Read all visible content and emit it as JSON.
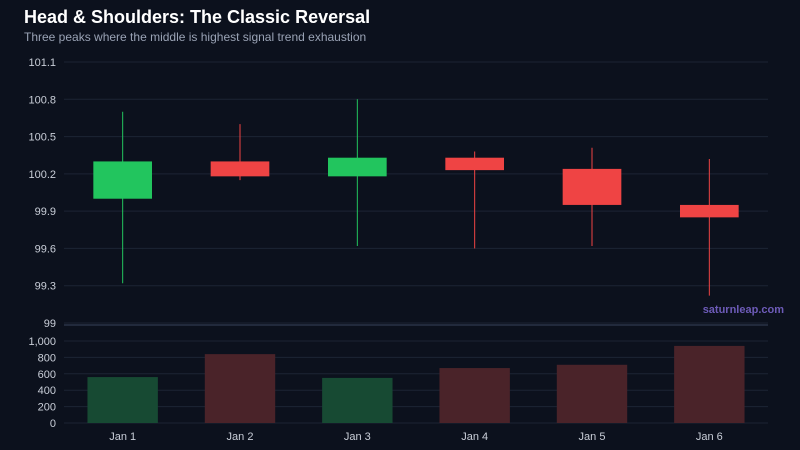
{
  "chart_data": {
    "type": "candlestick",
    "title": "Head & Shoulders: The Classic Reversal",
    "subtitle": "Three peaks where the middle is highest signal trend exhaustion",
    "watermark": "saturnleap.com",
    "categories": [
      "Jan 1",
      "Jan 2",
      "Jan 3",
      "Jan 4",
      "Jan 5",
      "Jan 6"
    ],
    "ohlc": [
      {
        "open": 100.0,
        "high": 100.7,
        "low": 99.32,
        "close": 100.3
      },
      {
        "open": 100.3,
        "high": 100.6,
        "low": 100.15,
        "close": 100.18
      },
      {
        "open": 100.18,
        "high": 100.8,
        "low": 99.62,
        "close": 100.33
      },
      {
        "open": 100.33,
        "high": 100.38,
        "low": 99.6,
        "close": 100.23
      },
      {
        "open": 100.24,
        "high": 100.41,
        "low": 99.62,
        "close": 99.95
      },
      {
        "open": 99.95,
        "high": 100.32,
        "low": 99.22,
        "close": 99.85
      }
    ],
    "volume": [
      560,
      840,
      550,
      670,
      710,
      940
    ],
    "price_axis": {
      "ylim": [
        99,
        101.1
      ],
      "ticks": [
        "99",
        "99.3",
        "99.6",
        "99.9",
        "100.2",
        "100.5",
        "100.8",
        "101.1"
      ]
    },
    "volume_axis": {
      "ylim": [
        0,
        1000
      ],
      "ticks": [
        "0",
        "200",
        "400",
        "600",
        "800",
        "1,000"
      ]
    },
    "colors": {
      "up": "#22c55e",
      "down": "#ef4444",
      "volume_up": "#174a33",
      "volume_down": "#4a2329",
      "grid": "#1c2434",
      "background": "#0c111d"
    }
  }
}
